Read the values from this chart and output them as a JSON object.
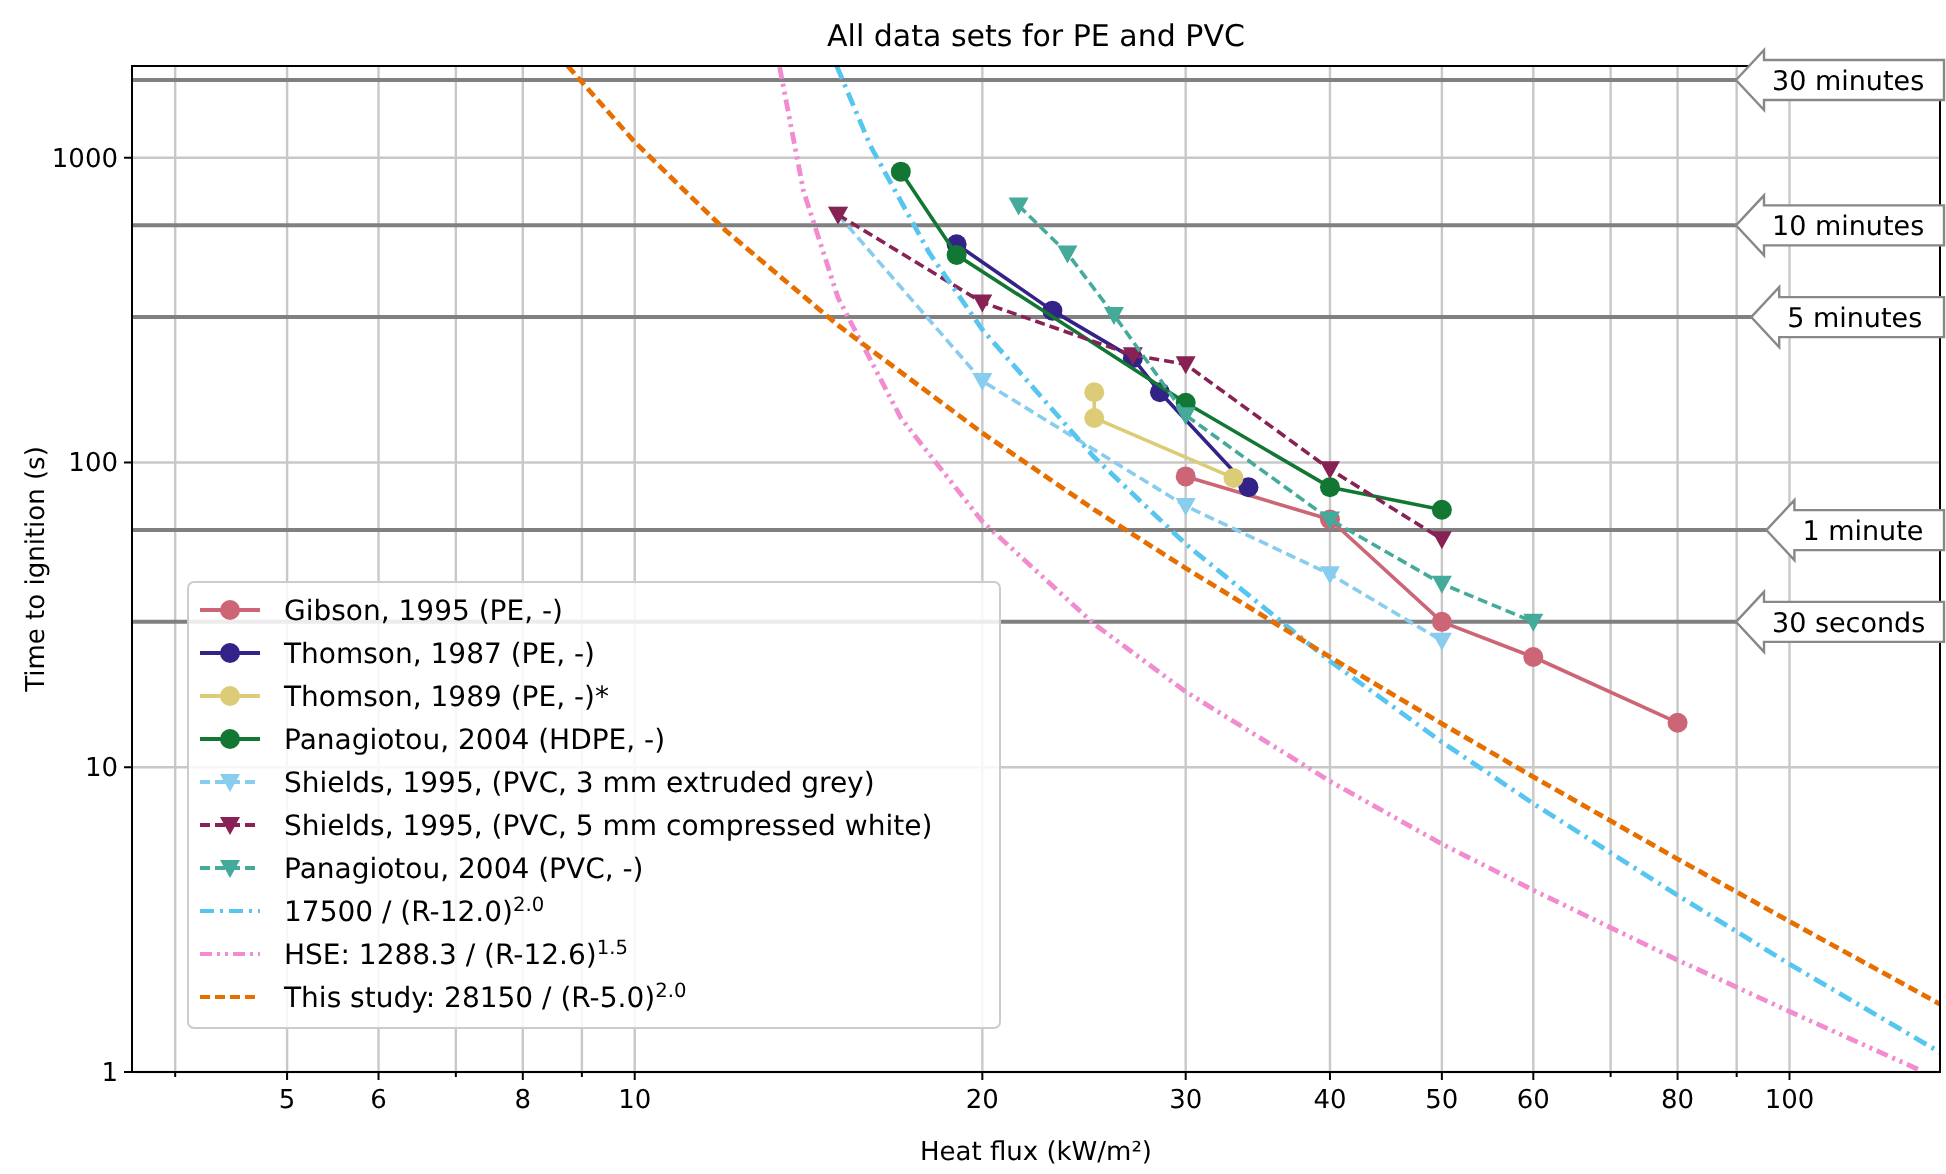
{
  "chart_data": {
    "type": "line",
    "title": "All data sets for PE and PVC",
    "xlabel": "Heat flux (kW/m²)",
    "ylabel": "Time to ignition (s)",
    "log": "xy",
    "grid": true,
    "legend": "bottom left",
    "xlim": [
      3.67,
      135
    ],
    "ylim": [
      1,
      2000
    ],
    "xticks": [
      {
        "value": 4,
        "label": null
      },
      5,
      6,
      {
        "value": 7,
        "label": null
      },
      8,
      {
        "value": 9,
        "label": null
      },
      10,
      20,
      30,
      40,
      50,
      60,
      {
        "value": 70,
        "label": null
      },
      80,
      {
        "value": 90,
        "label": null
      },
      100
    ],
    "yticks": [
      1,
      10,
      100,
      1000
    ],
    "series": [
      {
        "name": "Gibson, 1995 (PE, -)",
        "color": "#cc6677",
        "marker": "circle",
        "line_style": "solid",
        "x": [
          30,
          40,
          50,
          60,
          80
        ],
        "values": [
          90,
          65,
          30,
          23,
          14
        ]
      },
      {
        "name": "Thomson, 1987 (PE, -)",
        "color": "#332288",
        "marker": "circle",
        "line_style": "solid",
        "x": [
          19,
          23,
          27,
          28.5,
          34
        ],
        "values": [
          520,
          315,
          220,
          170,
          83
        ]
      },
      {
        "name": "Thomson, 1989 (PE, -)*",
        "color": "#ddcc77",
        "marker": "circle",
        "line_style": "solid",
        "x": [
          25,
          25,
          33
        ],
        "values": [
          170,
          140,
          89
        ]
      },
      {
        "name": "Panagiotou, 2004 (HDPE, -)",
        "color": "#117733",
        "marker": "circle",
        "line_style": "solid",
        "x": [
          17,
          19,
          30,
          40,
          50
        ],
        "values": [
          900,
          480,
          157,
          83,
          70
        ]
      },
      {
        "name": "Shields, 1995, (PVC, 3 mm extruded grey)",
        "color": "#88ccee",
        "marker": "triangle",
        "line_style": "dashed",
        "x": [
          15,
          20,
          30,
          40,
          50
        ],
        "values": [
          650,
          185,
          72,
          43,
          26
        ]
      },
      {
        "name": "Shields, 1995, (PVC, 5 mm compressed white)",
        "color": "#882255",
        "marker": "triangle",
        "line_style": "dashed",
        "x": [
          15,
          20,
          27,
          30,
          40,
          50
        ],
        "values": [
          650,
          335,
          225,
          210,
          95,
          56
        ]
      },
      {
        "name": "Panagiotou, 2004 (PVC, -)",
        "color": "#44aa99",
        "marker": "triangle",
        "line_style": "dashed",
        "x": [
          21.5,
          23.7,
          26,
          30,
          40,
          50,
          60
        ],
        "values": [
          697,
          485,
          305,
          143,
          65,
          40,
          30
        ]
      },
      {
        "name": "17500 / (R-12.0)$^{2.0}$",
        "color": "#56c5ef",
        "marker": "none",
        "line_style": "dashdot",
        "x": [
          14.96,
          16,
          18,
          20,
          25,
          30,
          40,
          50,
          60,
          80,
          100,
          135
        ],
        "values": [
          2000,
          1094,
          486,
          273,
          104,
          54,
          22.3,
          12.1,
          7.6,
          3.8,
          2.26,
          1.16
        ]
      },
      {
        "name": "HSE: 1288.3 / (R-12.6)$^{1.5}$",
        "color": "#f08ccf",
        "marker": "none",
        "line_style": "dashdotdot",
        "x": [
          13.35,
          14,
          15,
          17,
          20,
          25,
          30,
          40,
          50,
          60,
          80,
          100,
          130
        ],
        "values": [
          1983,
          778,
          347,
          140,
          64,
          29.5,
          17.7,
          9,
          5.6,
          3.95,
          2.33,
          1.58,
          1.01
        ]
      },
      {
        "name": "This study: 28150 / (R-5.0)$^{2.0}$",
        "color": "#e66f00",
        "marker": "none",
        "line_style": "dashed",
        "x": [
          8.75,
          10,
          12,
          15,
          20,
          25,
          30,
          40,
          50,
          60,
          80,
          100,
          135
        ],
        "values": [
          2000,
          1126,
          575,
          282,
          125,
          70,
          45,
          23,
          13.9,
          9.3,
          5,
          3.12,
          1.67
        ]
      }
    ],
    "ref_lines": [
      {
        "axis": "y",
        "value": 1800,
        "label": "30 minutes",
        "color": "#808080"
      },
      {
        "axis": "y",
        "value": 600,
        "label": "10 minutes",
        "color": "#808080"
      },
      {
        "axis": "y",
        "value": 300,
        "label": "5 minutes",
        "color": "#808080"
      },
      {
        "axis": "y",
        "value": 60,
        "label": "1 minute",
        "color": "#808080"
      },
      {
        "axis": "y",
        "value": 30,
        "label": "30 seconds",
        "color": "#808080"
      }
    ]
  }
}
